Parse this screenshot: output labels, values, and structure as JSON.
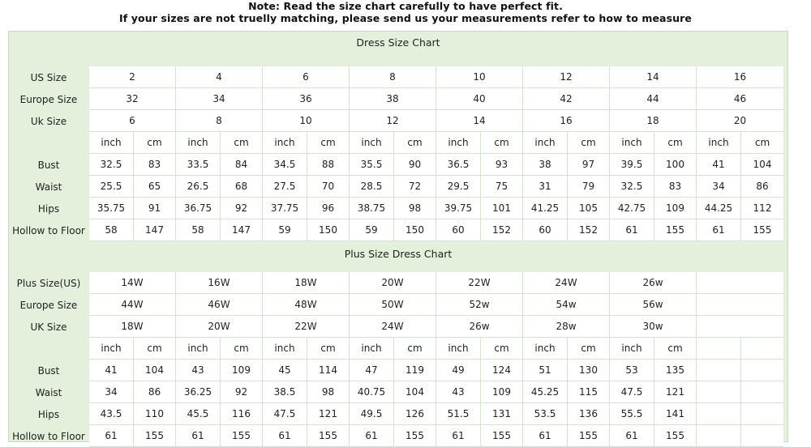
{
  "notes": {
    "line1": "Note: Read the size chart carefully to have perfect fit.",
    "line2": "If your sizes are not truelly matching, please send us your measurements refer to how to measure"
  },
  "dress": {
    "title": "Dress Size Chart",
    "rows": [
      {
        "label": "US Size",
        "span": true,
        "cells": [
          "2",
          "4",
          "6",
          "8",
          "10",
          "12",
          "14",
          "16"
        ]
      },
      {
        "label": "Europe Size",
        "span": true,
        "cells": [
          "32",
          "34",
          "36",
          "38",
          "40",
          "42",
          "44",
          "46"
        ]
      },
      {
        "label": "Uk Size",
        "span": true,
        "cells": [
          "6",
          "8",
          "10",
          "12",
          "14",
          "16",
          "18",
          "20"
        ]
      },
      {
        "label": "",
        "span": false,
        "cells": [
          "inch",
          "cm",
          "inch",
          "cm",
          "inch",
          "cm",
          "inch",
          "cm",
          "inch",
          "cm",
          "inch",
          "cm",
          "inch",
          "cm",
          "inch",
          "cm"
        ]
      },
      {
        "label": "Bust",
        "span": false,
        "cells": [
          "32.5",
          "83",
          "33.5",
          "84",
          "34.5",
          "88",
          "35.5",
          "90",
          "36.5",
          "93",
          "38",
          "97",
          "39.5",
          "100",
          "41",
          "104"
        ]
      },
      {
        "label": "Waist",
        "span": false,
        "cells": [
          "25.5",
          "65",
          "26.5",
          "68",
          "27.5",
          "70",
          "28.5",
          "72",
          "29.5",
          "75",
          "31",
          "79",
          "32.5",
          "83",
          "34",
          "86"
        ]
      },
      {
        "label": "Hips",
        "span": false,
        "cells": [
          "35.75",
          "91",
          "36.75",
          "92",
          "37.75",
          "96",
          "38.75",
          "98",
          "39.75",
          "101",
          "41.25",
          "105",
          "42.75",
          "109",
          "44.25",
          "112"
        ]
      },
      {
        "label": "Hollow to Floor",
        "span": false,
        "cells": [
          "58",
          "147",
          "58",
          "147",
          "59",
          "150",
          "59",
          "150",
          "60",
          "152",
          "60",
          "152",
          "61",
          "155",
          "61",
          "155"
        ]
      }
    ]
  },
  "plus": {
    "title": "Plus Size Dress Chart",
    "rows": [
      {
        "label": "Plus Size(US)",
        "span": true,
        "cells": [
          "14W",
          "16W",
          "18W",
          "20W",
          "22W",
          "24W",
          "26w",
          ""
        ]
      },
      {
        "label": "Europe Size",
        "span": true,
        "cells": [
          "44W",
          "46W",
          "48W",
          "50W",
          "52w",
          "54w",
          "56w",
          ""
        ]
      },
      {
        "label": "UK Size",
        "span": true,
        "cells": [
          "18W",
          "20W",
          "22W",
          "24W",
          "26w",
          "28w",
          "30w",
          ""
        ]
      },
      {
        "label": "",
        "span": false,
        "cells": [
          "inch",
          "cm",
          "inch",
          "cm",
          "inch",
          "cm",
          "inch",
          "cm",
          "inch",
          "cm",
          "inch",
          "cm",
          "inch",
          "cm",
          "",
          ""
        ]
      },
      {
        "label": "Bust",
        "span": false,
        "cells": [
          "41",
          "104",
          "43",
          "109",
          "45",
          "114",
          "47",
          "119",
          "49",
          "124",
          "51",
          "130",
          "53",
          "135",
          "",
          ""
        ]
      },
      {
        "label": "Waist",
        "span": false,
        "cells": [
          "34",
          "86",
          "36.25",
          "92",
          "38.5",
          "98",
          "40.75",
          "104",
          "43",
          "109",
          "45.25",
          "115",
          "47.5",
          "121",
          "",
          ""
        ]
      },
      {
        "label": "Hips",
        "span": false,
        "cells": [
          "43.5",
          "110",
          "45.5",
          "116",
          "47.5",
          "121",
          "49.5",
          "126",
          "51.5",
          "131",
          "53.5",
          "136",
          "55.5",
          "141",
          "",
          ""
        ]
      },
      {
        "label": "Hollow to Floor",
        "span": false,
        "cells": [
          "61",
          "155",
          "61",
          "155",
          "61",
          "155",
          "61",
          "155",
          "61",
          "155",
          "61",
          "155",
          "61",
          "155",
          "",
          ""
        ]
      }
    ]
  }
}
